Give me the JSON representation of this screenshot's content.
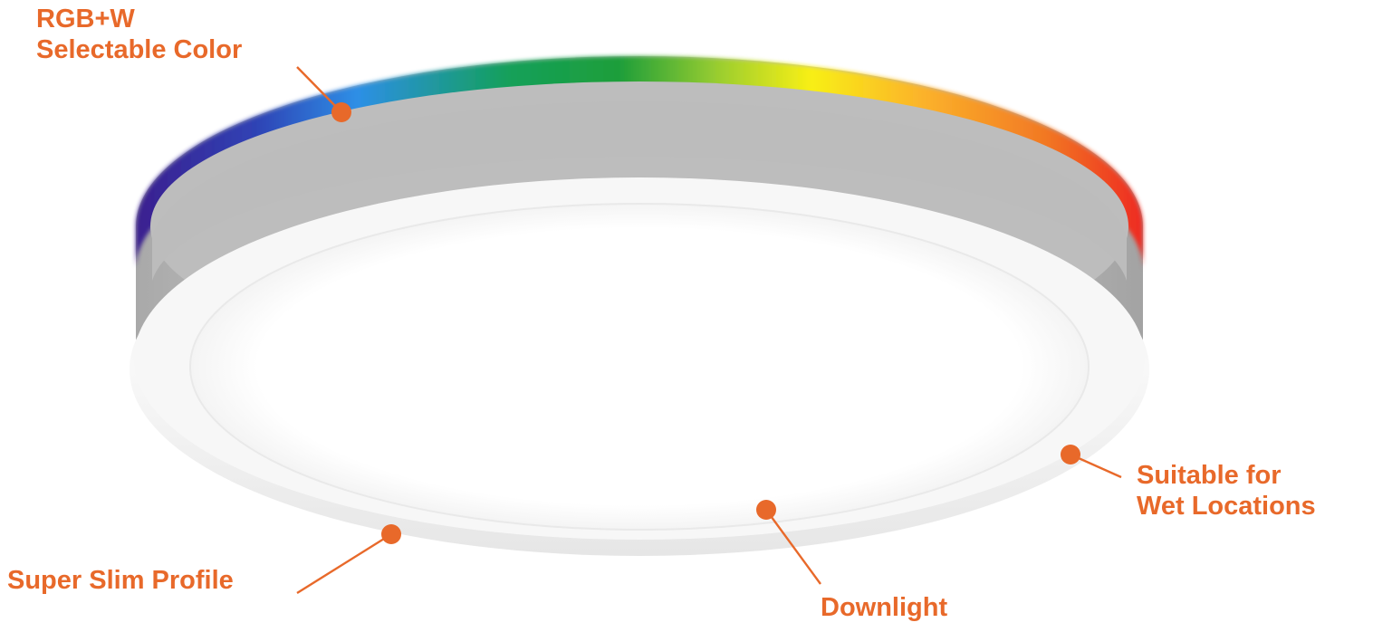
{
  "image": {
    "subject": "round-flush-mount-led-ceiling-light",
    "colors": {
      "accent": "#e8692a",
      "housing_gray": "#b9b9b9",
      "trim_white": "#f4f4f4",
      "lens_white": "#ffffff",
      "rgb_ring": [
        "#3b1f8f",
        "#2f43b5",
        "#2d8fe6",
        "#14a05a",
        "#1e9e3a",
        "#9cce2f",
        "#f8ef16",
        "#fbb32a",
        "#f27a24",
        "#ee2a24"
      ]
    },
    "icons": {
      "callout_marker": "orange-dot-icon",
      "leader_line": "leader-line"
    }
  },
  "callouts": {
    "rgbw": {
      "line1": "RGB+W",
      "line2": "Selectable Color"
    },
    "wet_locations": {
      "line1": "Suitable for",
      "line2": "Wet Locations"
    },
    "slim_profile": {
      "line1": "Super Slim Profile"
    },
    "downlight": {
      "line1": "Downlight"
    }
  }
}
